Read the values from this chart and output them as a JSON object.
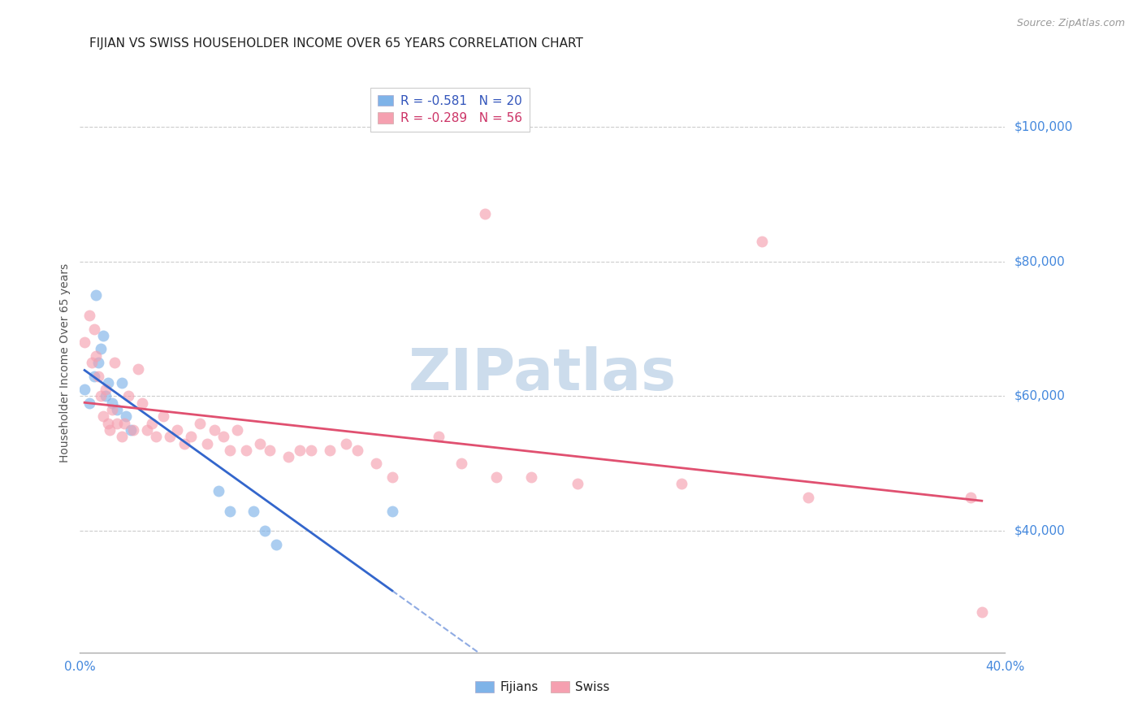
{
  "title": "FIJIAN VS SWISS HOUSEHOLDER INCOME OVER 65 YEARS CORRELATION CHART",
  "source": "Source: ZipAtlas.com",
  "ylabel": "Householder Income Over 65 years",
  "xlim": [
    0.0,
    0.4
  ],
  "ylim": [
    22000,
    108000
  ],
  "yticks": [
    40000,
    60000,
    80000,
    100000
  ],
  "ytick_labels": [
    "$40,000",
    "$60,000",
    "$80,000",
    "$100,000"
  ],
  "xticks": [
    0.0,
    0.1,
    0.2,
    0.3,
    0.4
  ],
  "xtick_labels": [
    "0.0%",
    "",
    "",
    "",
    "40.0%"
  ],
  "fijian_color": "#7fb3e8",
  "swiss_color": "#f5a0b0",
  "fijian_line_color": "#3366cc",
  "swiss_line_color": "#e05070",
  "background_color": "#ffffff",
  "grid_color": "#cccccc",
  "watermark_text": "ZIPatlas",
  "watermark_color": "#ccdcec",
  "legend_label_fijian": "R = -0.581   N = 20",
  "legend_label_swiss": "R = -0.289   N = 56",
  "legend_color_fijian": "#3355bb",
  "legend_color_swiss": "#cc3366",
  "fijian_x": [
    0.002,
    0.004,
    0.006,
    0.007,
    0.008,
    0.009,
    0.01,
    0.011,
    0.012,
    0.014,
    0.016,
    0.018,
    0.02,
    0.022,
    0.06,
    0.065,
    0.075,
    0.08,
    0.085,
    0.135
  ],
  "fijian_y": [
    61000,
    59000,
    63000,
    75000,
    65000,
    67000,
    69000,
    60000,
    62000,
    59000,
    58000,
    62000,
    57000,
    55000,
    46000,
    43000,
    43000,
    40000,
    38000,
    43000
  ],
  "swiss_x": [
    0.002,
    0.004,
    0.005,
    0.006,
    0.007,
    0.008,
    0.009,
    0.01,
    0.011,
    0.012,
    0.013,
    0.014,
    0.015,
    0.016,
    0.018,
    0.019,
    0.021,
    0.023,
    0.025,
    0.027,
    0.029,
    0.031,
    0.033,
    0.036,
    0.039,
    0.042,
    0.045,
    0.048,
    0.052,
    0.055,
    0.058,
    0.062,
    0.065,
    0.068,
    0.072,
    0.078,
    0.082,
    0.09,
    0.095,
    0.1,
    0.108,
    0.115,
    0.12,
    0.128,
    0.135,
    0.155,
    0.165,
    0.18,
    0.195,
    0.215,
    0.175,
    0.26,
    0.295,
    0.315,
    0.385,
    0.39
  ],
  "swiss_y": [
    68000,
    72000,
    65000,
    70000,
    66000,
    63000,
    60000,
    57000,
    61000,
    56000,
    55000,
    58000,
    65000,
    56000,
    54000,
    56000,
    60000,
    55000,
    64000,
    59000,
    55000,
    56000,
    54000,
    57000,
    54000,
    55000,
    53000,
    54000,
    56000,
    53000,
    55000,
    54000,
    52000,
    55000,
    52000,
    53000,
    52000,
    51000,
    52000,
    52000,
    52000,
    53000,
    52000,
    50000,
    48000,
    54000,
    50000,
    48000,
    48000,
    47000,
    87000,
    47000,
    83000,
    45000,
    45000,
    28000
  ],
  "marker_size": 100,
  "marker_alpha": 0.65,
  "title_fontsize": 11,
  "label_fontsize": 10,
  "tick_fontsize": 11,
  "source_fontsize": 9,
  "legend_fontsize": 11
}
